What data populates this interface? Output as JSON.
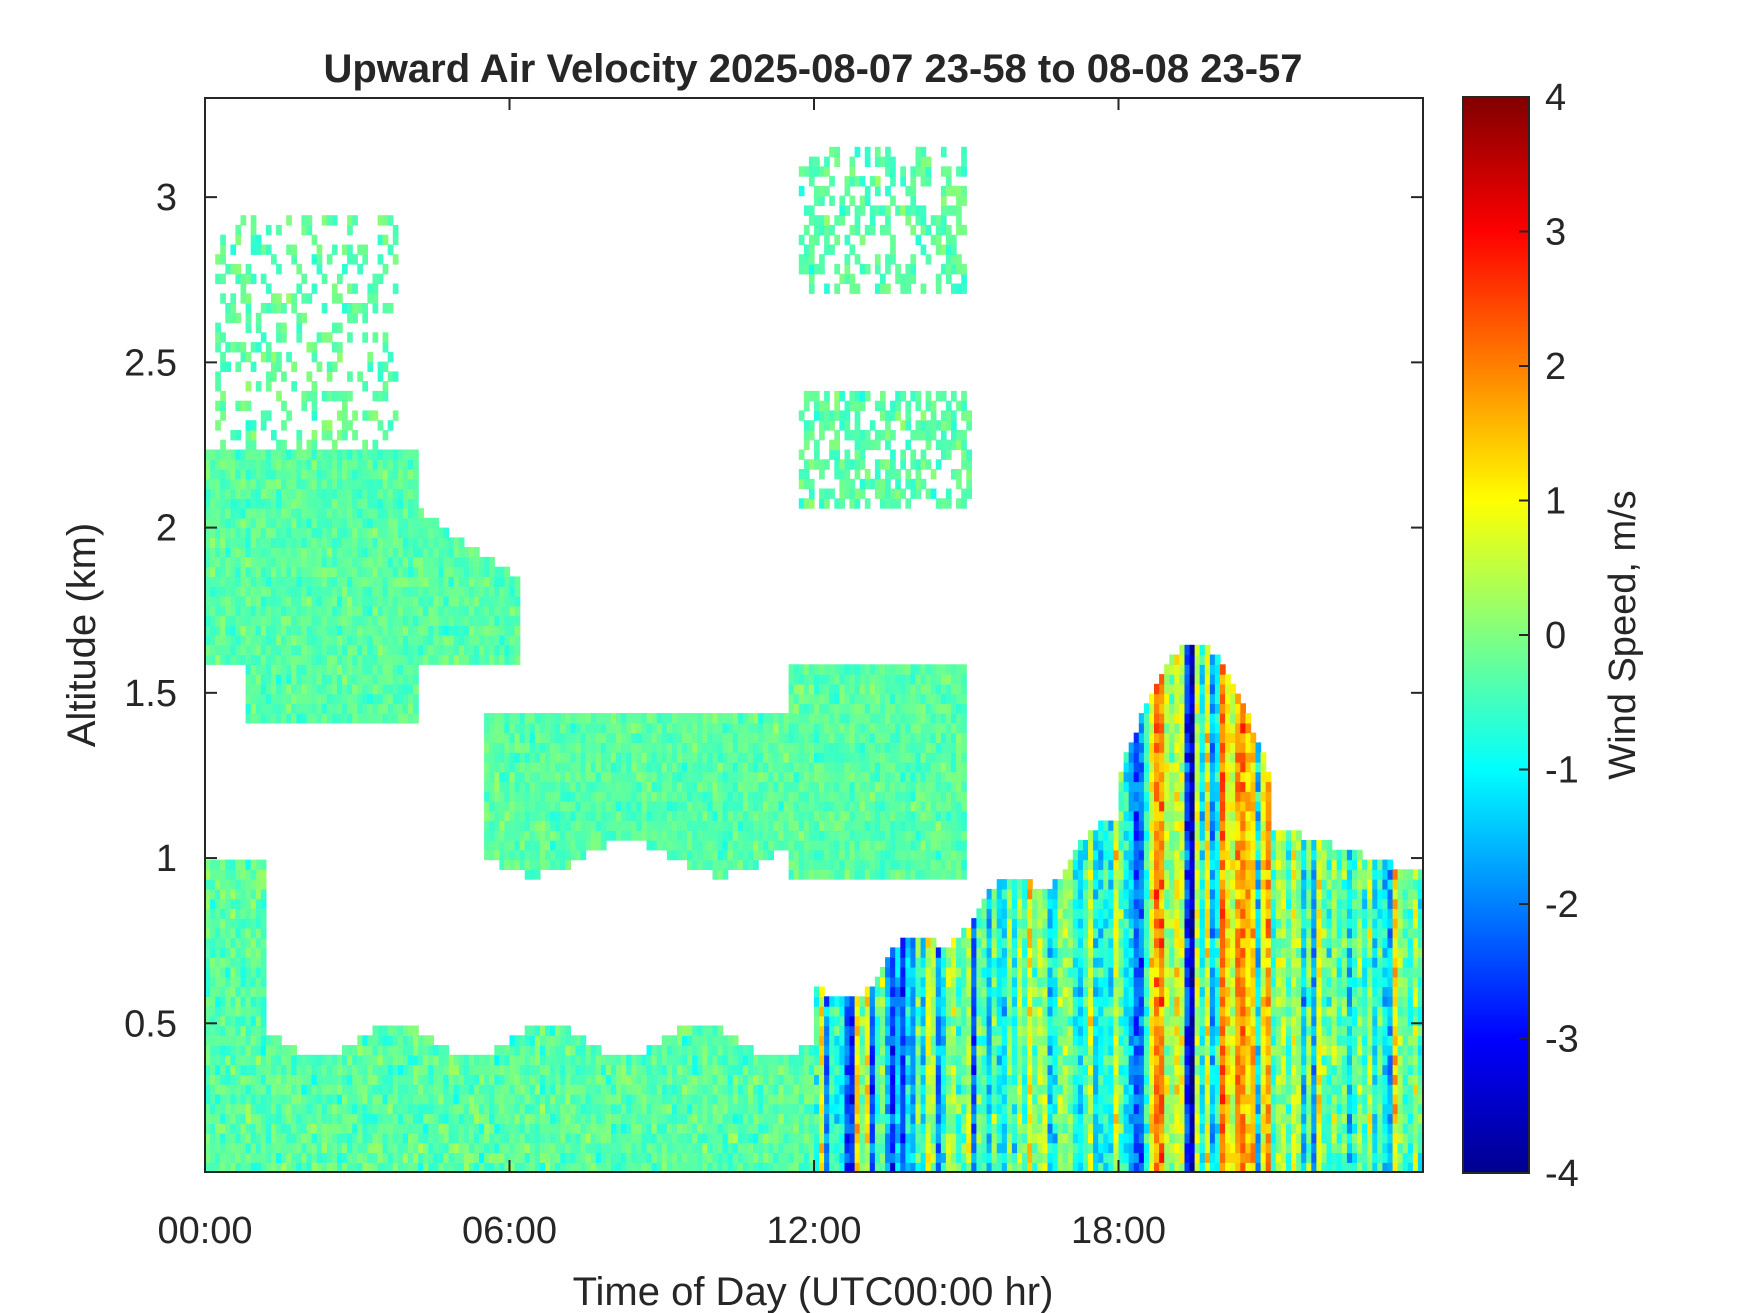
{
  "chart_data": {
    "type": "heatmap",
    "title": "Upward Air Velocity 2025-08-07 23-58 to 08-08 23-57",
    "xlabel": "Time of Day (UTC00:00 hr)",
    "ylabel": "Altitude (km)",
    "colorbar_label": "Wind Speed, m/s",
    "colormap": "jet",
    "xlim_hours": [
      0,
      24
    ],
    "ylim": [
      0.05,
      3.3
    ],
    "clim": [
      -4,
      4
    ],
    "x_ticks": [
      {
        "value": 0,
        "label": "00:00"
      },
      {
        "value": 6,
        "label": "06:00"
      },
      {
        "value": 12,
        "label": "12:00"
      },
      {
        "value": 18,
        "label": "18:00"
      }
    ],
    "y_ticks": [
      {
        "value": 0.5,
        "label": "0.5"
      },
      {
        "value": 1,
        "label": "1"
      },
      {
        "value": 1.5,
        "label": "1.5"
      },
      {
        "value": 2,
        "label": "2"
      },
      {
        "value": 2.5,
        "label": "2.5"
      },
      {
        "value": 3,
        "label": "3"
      }
    ],
    "colorbar_ticks": [
      {
        "value": 4,
        "label": "4"
      },
      {
        "value": 3,
        "label": "3"
      },
      {
        "value": 2,
        "label": "2"
      },
      {
        "value": 1,
        "label": "1"
      },
      {
        "value": 0,
        "label": "0"
      },
      {
        "value": -1,
        "label": "-1"
      },
      {
        "value": -2,
        "label": "-2"
      },
      {
        "value": -3,
        "label": "-3"
      },
      {
        "value": -4,
        "label": "-4"
      }
    ],
    "grid": false,
    "data_regions": [
      {
        "description": "low-level boundary layer echoes",
        "t_start": 0,
        "t_end": 12,
        "alt_min": 0.05,
        "alt_max": 0.45,
        "w_typical": -0.2
      },
      {
        "description": "convective boundary layer with strong updrafts and downdrafts",
        "t_start": 12,
        "t_end": 24,
        "alt_min": 0.05,
        "alt_max": 1.1,
        "w_typical": -0.5,
        "w_range": [
          -3.5,
          3.5
        ]
      },
      {
        "description": "deep convective plume",
        "t_start": 18,
        "t_end": 21,
        "alt_min": 0.05,
        "alt_max": 1.7,
        "w_range": [
          -3.5,
          3.8
        ]
      },
      {
        "description": "elevated cloud layer",
        "t_start": 0,
        "t_end": 6.2,
        "alt_min": 1.4,
        "alt_max": 2.25,
        "w_typical": -0.4
      },
      {
        "description": "mid-level layer",
        "t_start": 5.5,
        "t_end": 15,
        "alt_min": 0.95,
        "alt_max": 1.6,
        "w_typical": -0.1
      },
      {
        "description": "upper-level cloud",
        "t_start": 11.7,
        "t_end": 15.1,
        "alt_min": 2.0,
        "alt_max": 3.2,
        "w_typical": -0.1
      }
    ]
  }
}
